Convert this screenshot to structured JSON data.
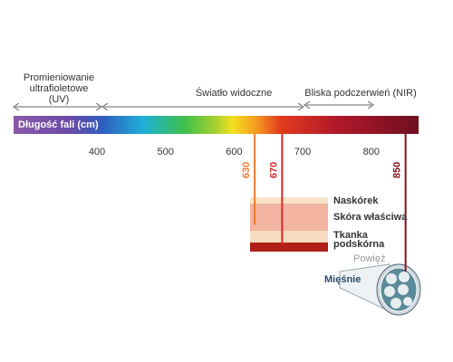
{
  "regions": [
    {
      "lines": [
        "Promieniowanie",
        "ultrafioletowe",
        "(UV)"
      ]
    },
    {
      "lines": [
        "Światło widoczne"
      ]
    },
    {
      "lines": [
        "Bliska podczerwień (NIR)"
      ]
    }
  ],
  "spectrum": {
    "label": "Długość fali (cm)",
    "ticks": [
      400,
      500,
      600,
      700,
      800
    ]
  },
  "wavelengths": [
    630,
    670,
    850
  ],
  "layers": [
    {
      "lines": [
        "Naskórek"
      ]
    },
    {
      "lines": [
        "Skóra właściwa"
      ]
    },
    {
      "lines": [
        "Tkanka",
        "podskórna"
      ]
    }
  ],
  "muscle": {
    "fascia": "Powięź",
    "muscles": "Mięśnie"
  }
}
